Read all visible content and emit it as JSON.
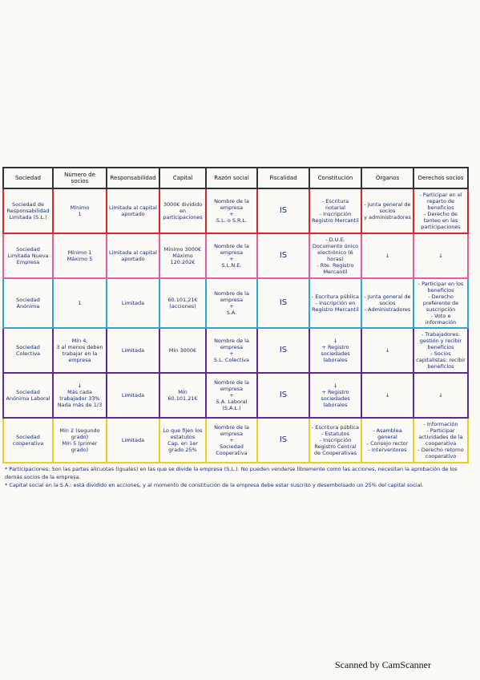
{
  "table": {
    "header": [
      "Sociedad",
      "Número de socios",
      "Responsabilidad",
      "Capital",
      "Razón social",
      "Fiscalidad",
      "Constitución",
      "Órganos",
      "Derechos socios"
    ],
    "rows": [
      [
        [
          "Sociedad de Responsabilidad Limitada (S.L.)"
        ],
        [
          "Mínimo",
          "1"
        ],
        [
          "Limitada al capital aportado"
        ],
        [
          "3000€ dividido en participaciones"
        ],
        [
          "Nombre de la empresa",
          "+",
          "S.L. o S.R.L."
        ],
        [
          "IS"
        ],
        [
          "- Escritura notarial",
          "- Inscripción Registro Mercantil"
        ],
        [
          "- Junta general de socios",
          "y administradores"
        ],
        [
          "- Participar en el reparto de beneficios",
          "- Derecho de tanteo en las participaciones"
        ]
      ],
      [
        [
          "Sociedad Limitada Nueva Empresa"
        ],
        [
          "Mínimo 1",
          "Máximo 5"
        ],
        [
          "Limitada al capital aportado"
        ],
        [
          "Mínimo 3000€",
          "Máximo 120.202€"
        ],
        [
          "Nombre de la empresa",
          "+",
          "S.L.N.E."
        ],
        [
          "IS"
        ],
        [
          "- D.U.E. Documento único electrónico (6 horas)",
          "- Rte. Registro Mercantil"
        ],
        [
          "↓"
        ],
        [
          "↓"
        ]
      ],
      [
        [
          "Sociedad Anónima"
        ],
        [
          "1"
        ],
        [
          "Limitada"
        ],
        [
          "60.101,21€",
          "(acciones)"
        ],
        [
          "Nombre de la empresa",
          "+",
          "S.A."
        ],
        [
          "IS"
        ],
        [
          "- Escritura pública",
          "- Inscripción en Registro Mercantil"
        ],
        [
          "- Junta general de socios",
          "- Administradores"
        ],
        [
          "- Participar en los beneficios",
          "- Derecho preferente de suscripción",
          "- Voto e información"
        ]
      ],
      [
        [
          "Sociedad Colectiva"
        ],
        [
          "Mín 4,",
          "3 al menos deben trabajar en la empresa"
        ],
        [
          "Limitada"
        ],
        [
          "Mín 3000€"
        ],
        [
          "Nombre de la empresa",
          "+",
          "S.L. Colectiva"
        ],
        [
          "IS"
        ],
        [
          "↓",
          "+ Registro sociedades laborales"
        ],
        [
          "↓"
        ],
        [
          "- Trabajadores: gestión y recibir beneficios",
          "- Socios capitalistas: recibir beneficios"
        ]
      ],
      [
        [
          "Sociedad Anónima Laboral"
        ],
        [
          "↓",
          "Más cada trabajador 33%",
          "Nada más de 1/3"
        ],
        [
          "Limitada"
        ],
        [
          "Mín",
          "60.101,21€"
        ],
        [
          "Nombre de la empresa",
          "+",
          "S.A. Laboral (S.A.L.)"
        ],
        [
          "IS"
        ],
        [
          "↓",
          "+ Registro sociedades laborales"
        ],
        [
          "↓"
        ],
        [
          "↓"
        ]
      ],
      [
        [
          "Sociedad cooperativa"
        ],
        [
          "Mín 2 (segundo grado)",
          "Mín 5 (primer grado)"
        ],
        [
          "Limitada"
        ],
        [
          "Lo que fijen los estatutos",
          "Cap. en 1er grado 25%"
        ],
        [
          "Nombre de la empresa",
          "+",
          "Sociedad Cooperativa"
        ],
        [
          "IS"
        ],
        [
          "- Escritura pública",
          "- Estatutos",
          "- Inscripción Registro Central de Cooperativas"
        ],
        [
          "- Asamblea general",
          "- Consejo rector",
          "- Interventores"
        ],
        [
          "- Información",
          "- Participar actividades de la cooperativa",
          "- Derecho retorno cooperativo"
        ]
      ]
    ],
    "row_colors": [
      "#d9262b",
      "#e85a9a",
      "#2aa6d8",
      "#5a2a9a",
      "#5a2a9a",
      "#e8d020"
    ]
  },
  "notes": [
    "* Participaciones: Son las partes alícuotas (iguales) en las que se divide la empresa (S.L.). No pueden venderse libremente como las acciones, necesitan la aprobación de los demás socios de la empresa.",
    "* Capital social en la S.A.: está dividido en acciones, y al momento de constitución de la empresa debe estar suscrito y desembolsado un 25% del capital social."
  ],
  "footer": "Scanned by CamScanner"
}
